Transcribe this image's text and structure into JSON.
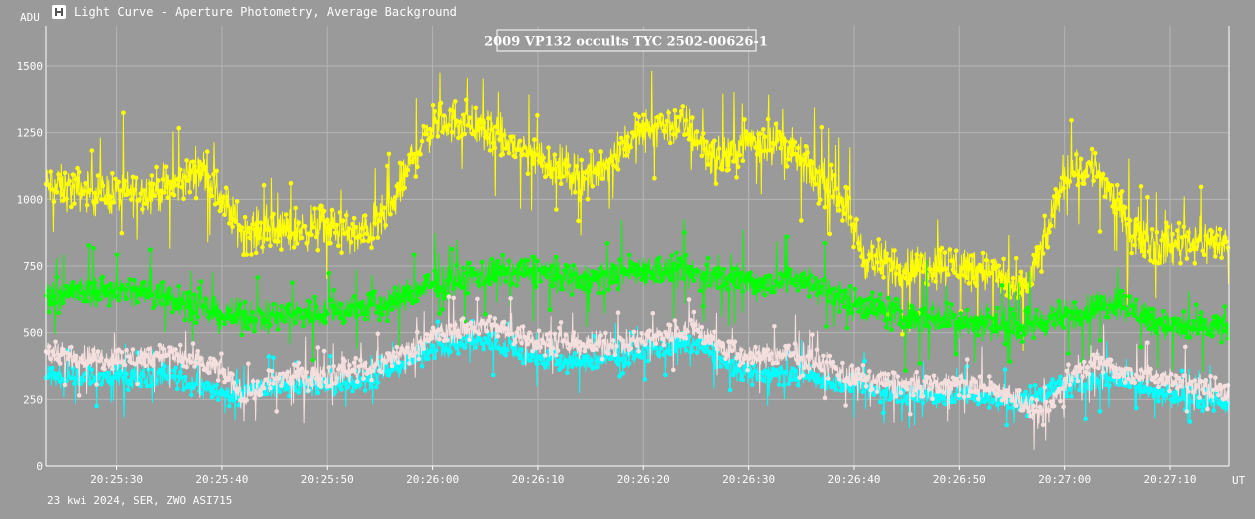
{
  "window": {
    "title": "Light Curve - Aperture Photometry, Average Background",
    "icon": "chart-icon"
  },
  "footer": {
    "text": "23 kwi 2024, SER, ZWO ASI715"
  },
  "colors": {
    "background": "#9a9a9a",
    "grid": "#b5b5b5",
    "series_yellow": "#ffff00",
    "series_green": "#00ff00",
    "series_cyan": "#00ffff",
    "series_pink": "#f5dede"
  },
  "chart_data": {
    "type": "line",
    "title": "2009 VP132 occults TYC 2502-00626-1",
    "ylabel": "ADU",
    "xlabel": "UT",
    "ylim": [
      0,
      1650
    ],
    "xlim": [
      "20:25:23.3",
      "20:27:15.6"
    ],
    "yticks": [
      0,
      250,
      500,
      750,
      1000,
      1250,
      1500
    ],
    "xticks": [
      "20:25:30",
      "20:25:40",
      "20:25:50",
      "20:26:00",
      "20:26:10",
      "20:26:20",
      "20:26:30",
      "20:26:40",
      "20:26:50",
      "20:27:00",
      "20:27:10"
    ],
    "grid": true,
    "series": [
      {
        "color": "#ffff00",
        "sample_interval_s": 0.05,
        "trend": [
          [
            23.3,
            1050
          ],
          [
            30,
            1020
          ],
          [
            35,
            1040
          ],
          [
            38,
            1120
          ],
          [
            40,
            1000
          ],
          [
            42,
            880
          ],
          [
            46,
            880
          ],
          [
            50,
            900
          ],
          [
            53,
            860
          ],
          [
            56,
            950
          ],
          [
            58,
            1150
          ],
          [
            60,
            1280
          ],
          [
            63,
            1300
          ],
          [
            66,
            1230
          ],
          [
            69,
            1180
          ],
          [
            72,
            1120
          ],
          [
            75,
            1080
          ],
          [
            78,
            1200
          ],
          [
            81,
            1280
          ],
          [
            84,
            1280
          ],
          [
            87,
            1140
          ],
          [
            90,
            1220
          ],
          [
            93,
            1220
          ],
          [
            96,
            1100
          ],
          [
            99,
            1000
          ],
          [
            101,
            780
          ],
          [
            105,
            740
          ],
          [
            109,
            760
          ],
          [
            113,
            730
          ],
          [
            116,
            650
          ],
          [
            118,
            820
          ],
          [
            120,
            1100
          ],
          [
            123,
            1120
          ],
          [
            126,
            900
          ],
          [
            129,
            820
          ],
          [
            132,
            850
          ],
          [
            135.6,
            830
          ]
        ],
        "scatter": 120
      },
      {
        "color": "#00ff00",
        "sample_interval_s": 0.05,
        "trend": [
          [
            23.3,
            650
          ],
          [
            30,
            660
          ],
          [
            35,
            640
          ],
          [
            40,
            560
          ],
          [
            45,
            560
          ],
          [
            50,
            580
          ],
          [
            55,
            600
          ],
          [
            60,
            680
          ],
          [
            65,
            720
          ],
          [
            70,
            730
          ],
          [
            75,
            700
          ],
          [
            80,
            740
          ],
          [
            85,
            720
          ],
          [
            90,
            690
          ],
          [
            95,
            700
          ],
          [
            100,
            610
          ],
          [
            105,
            560
          ],
          [
            110,
            550
          ],
          [
            115,
            520
          ],
          [
            120,
            560
          ],
          [
            125,
            620
          ],
          [
            130,
            520
          ],
          [
            135.6,
            520
          ]
        ],
        "scatter": 90
      },
      {
        "color": "#00ffff",
        "sample_interval_s": 0.05,
        "trend": [
          [
            23.3,
            340
          ],
          [
            30,
            330
          ],
          [
            35,
            340
          ],
          [
            40,
            270
          ],
          [
            45,
            300
          ],
          [
            50,
            300
          ],
          [
            55,
            340
          ],
          [
            60,
            440
          ],
          [
            65,
            470
          ],
          [
            70,
            400
          ],
          [
            75,
            390
          ],
          [
            80,
            430
          ],
          [
            85,
            460
          ],
          [
            88,
            380
          ],
          [
            90,
            350
          ],
          [
            95,
            340
          ],
          [
            100,
            300
          ],
          [
            105,
            260
          ],
          [
            110,
            270
          ],
          [
            115,
            240
          ],
          [
            120,
            300
          ],
          [
            125,
            330
          ],
          [
            130,
            260
          ],
          [
            135.6,
            240
          ]
        ],
        "scatter": 60
      },
      {
        "color": "#f5dede",
        "sample_interval_s": 0.05,
        "trend": [
          [
            23.3,
            420
          ],
          [
            30,
            400
          ],
          [
            35,
            420
          ],
          [
            40,
            360
          ],
          [
            42,
            260
          ],
          [
            45,
            330
          ],
          [
            50,
            340
          ],
          [
            55,
            380
          ],
          [
            60,
            490
          ],
          [
            65,
            530
          ],
          [
            70,
            470
          ],
          [
            75,
            450
          ],
          [
            80,
            470
          ],
          [
            85,
            520
          ],
          [
            88,
            430
          ],
          [
            90,
            410
          ],
          [
            95,
            420
          ],
          [
            100,
            330
          ],
          [
            105,
            300
          ],
          [
            110,
            310
          ],
          [
            115,
            270
          ],
          [
            118,
            170
          ],
          [
            120,
            320
          ],
          [
            123,
            390
          ],
          [
            126,
            350
          ],
          [
            130,
            320
          ],
          [
            135.6,
            280
          ]
        ],
        "scatter": 70
      }
    ]
  }
}
